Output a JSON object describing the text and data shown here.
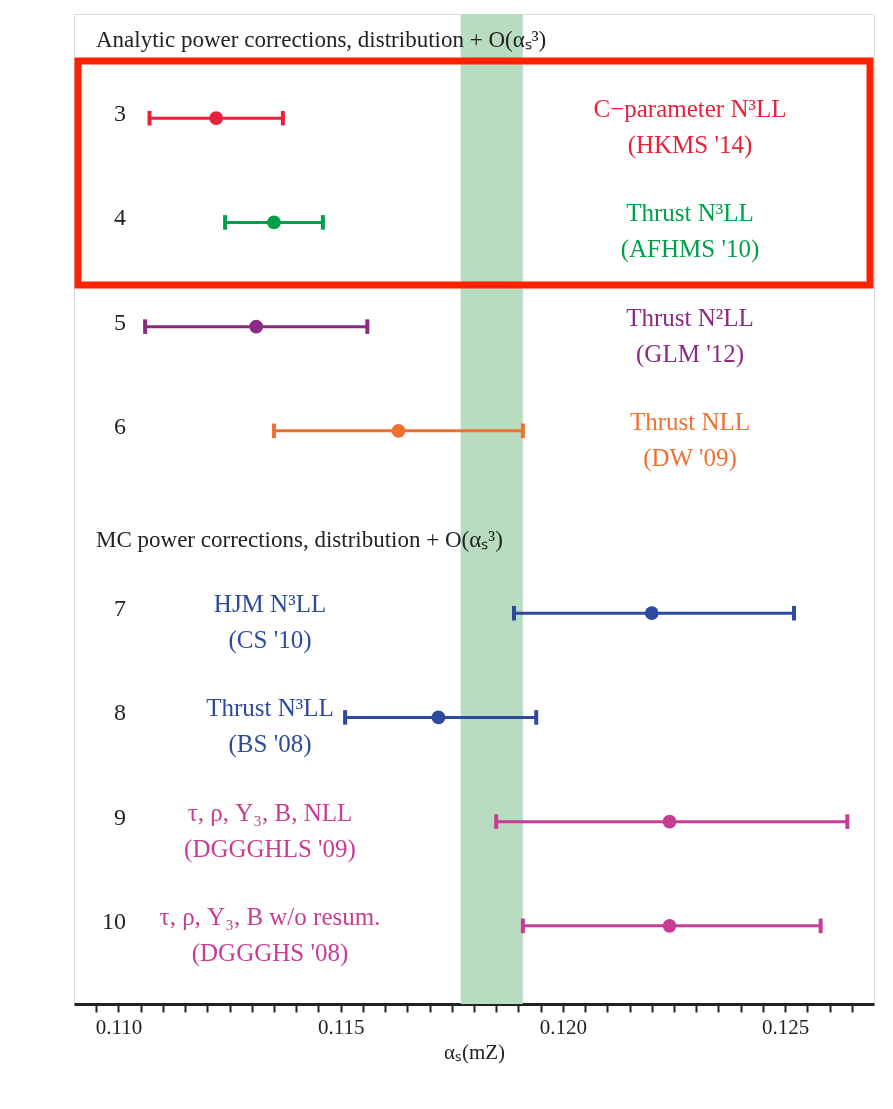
{
  "chart_data": {
    "type": "scatter",
    "orientation": "horizontal",
    "categories": [
      "3",
      "4",
      "5",
      "6",
      "7",
      "8",
      "9",
      "10"
    ],
    "values": [
      0.1122,
      0.1135,
      0.1131,
      0.1163,
      0.122,
      0.1172,
      0.1224,
      0.1224
    ],
    "colors": [
      "#e8213a",
      "#00a04a",
      "#8b2a83",
      "#f07030",
      "#2e4a9e",
      "#2e4a9e",
      "#c83c96",
      "#c83c96"
    ],
    "errors": [
      [
        0.1107,
        0.1137
      ],
      [
        0.1124,
        0.1146
      ],
      [
        0.1106,
        0.1156
      ],
      [
        0.1135,
        0.1191
      ],
      [
        0.1189,
        0.1252
      ],
      [
        0.1151,
        0.1194
      ],
      [
        0.1185,
        0.1264
      ],
      [
        0.1191,
        0.1258
      ]
    ],
    "xlabel": "αₛ(mZ)",
    "xlim": [
      0.109,
      0.127
    ],
    "xticks": [
      {
        "value": 0.1095,
        "label": null
      },
      {
        "value": 0.11,
        "label": "0.110"
      },
      {
        "value": 0.1105,
        "label": null
      },
      {
        "value": 0.111,
        "label": null
      },
      {
        "value": 0.1115,
        "label": null
      },
      {
        "value": 0.112,
        "label": null
      },
      {
        "value": 0.1125,
        "label": null
      },
      {
        "value": 0.113,
        "label": null
      },
      {
        "value": 0.1135,
        "label": null
      },
      {
        "value": 0.114,
        "label": null
      },
      {
        "value": 0.1145,
        "label": null
      },
      {
        "value": 0.115,
        "label": "0.115"
      },
      {
        "value": 0.1155,
        "label": null
      },
      {
        "value": 0.116,
        "label": null
      },
      {
        "value": 0.1165,
        "label": null
      },
      {
        "value": 0.117,
        "label": null
      },
      {
        "value": 0.1175,
        "label": null
      },
      {
        "value": 0.118,
        "label": null
      },
      {
        "value": 0.1185,
        "label": null
      },
      {
        "value": 0.119,
        "label": null
      },
      {
        "value": 0.1195,
        "label": null
      },
      {
        "value": 0.12,
        "label": "0.120"
      },
      {
        "value": 0.1205,
        "label": null
      },
      {
        "value": 0.121,
        "label": null
      },
      {
        "value": 0.1215,
        "label": null
      },
      {
        "value": 0.122,
        "label": null
      },
      {
        "value": 0.1225,
        "label": null
      },
      {
        "value": 0.123,
        "label": null
      },
      {
        "value": 0.1235,
        "label": null
      },
      {
        "value": 0.124,
        "label": null
      },
      {
        "value": 0.1245,
        "label": null
      },
      {
        "value": 0.125,
        "label": "0.125"
      },
      {
        "value": 0.1255,
        "label": null
      },
      {
        "value": 0.126,
        "label": null
      },
      {
        "value": 0.1265,
        "label": null
      }
    ],
    "annotations": [
      "Analytic power corrections, distribution + O(αₛ³)",
      "MC power corrections, distribution + O(αₛ³)",
      "C−parameter N³LL\n(HKMS '14)",
      "Thrust N³LL\n(AFHMS '10)",
      "Thrust N²LL\n(GLM '12)",
      "Thrust NLL\n(DW '09)",
      "HJM N³LL\n(CS '10)",
      "Thrust N³LL\n(BS '08)",
      "τ, ρ, Y₃, B, NLL\n(DGGGHLS '09)",
      "τ, ρ, Y₃, B w/o resum.\n(DGGGHS '08)"
    ],
    "bands": [
      {
        "axis": "x",
        "from": 0.1177,
        "to": 0.1191,
        "color": "#b8dcc0"
      }
    ],
    "marker": "circle",
    "grid": false
  }
}
